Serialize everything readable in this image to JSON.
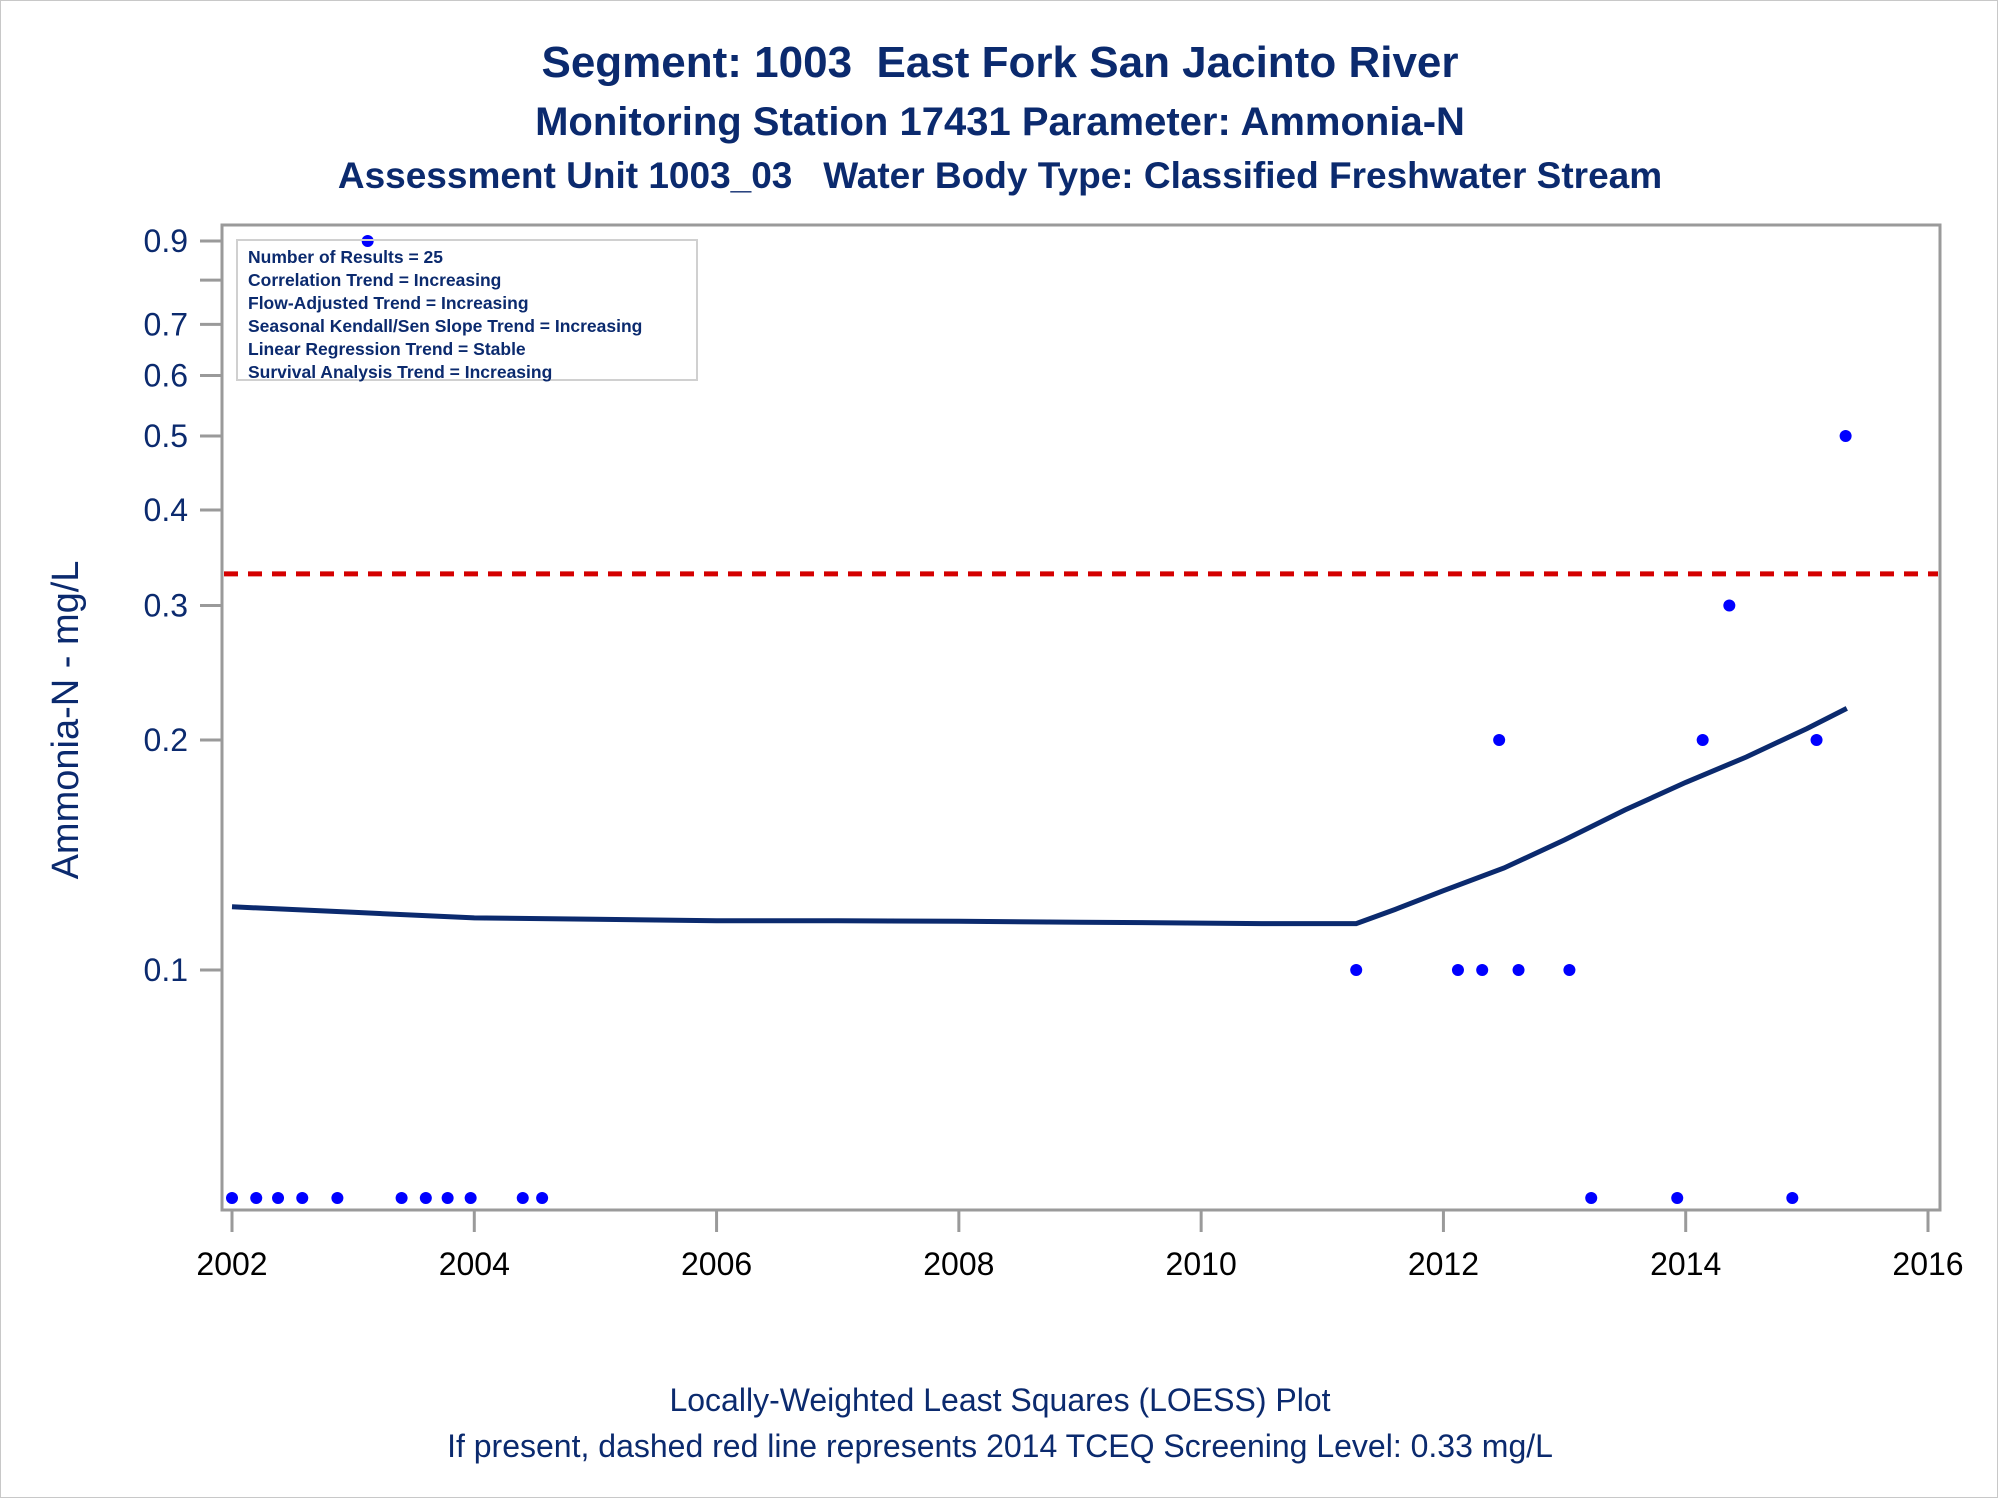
{
  "titles": {
    "line1": "Segment: 1003  East Fork San Jacinto River",
    "line2": "Monitoring Station 17431 Parameter: Ammonia-N",
    "line3": "Assessment Unit 1003_03   Water Body Type: Classified Freshwater Stream"
  },
  "footnotes": {
    "line1": "Locally-Weighted Least Squares (LOESS) Plot",
    "line2": "If present, dashed red line represents 2014 TCEQ Screening Level: 0.33 mg/L"
  },
  "legend": [
    "Number of Results = 25",
    "Correlation Trend = Increasing",
    "Flow-Adjusted Trend = Increasing",
    "Seasonal Kendall/Sen Slope Trend = Increasing",
    "Linear Regression Trend = Stable",
    "Survival Analysis Trend = Increasing"
  ],
  "colors": {
    "text": "#0b2a6e",
    "points": "#0000ff",
    "loess_line": "#0b2a6e",
    "screening_line": "#d40000",
    "axis": "#9a9a9a"
  },
  "chart_data": {
    "type": "scatter",
    "title": "Segment: 1003  East Fork San Jacinto River",
    "ylabel": "Ammonia-N - mg/L",
    "xlabel": "",
    "y_scale": "log",
    "ylim": [
      0.05,
      0.95
    ],
    "xlim": [
      2002,
      2016
    ],
    "x_ticks": [
      "2002",
      "2004",
      "2006",
      "2008",
      "2010",
      "2012",
      "2014",
      "2016"
    ],
    "y_ticks": [
      {
        "value": 0.1,
        "label": "0.1"
      },
      {
        "value": 0.2,
        "label": "0.2"
      },
      {
        "value": 0.3,
        "label": "0.3"
      },
      {
        "value": 0.4,
        "label": "0.4"
      },
      {
        "value": 0.5,
        "label": "0.5"
      },
      {
        "value": 0.6,
        "label": "0.6"
      },
      {
        "value": 0.7,
        "label": "0.7"
      },
      {
        "value": 0.8,
        "label": ""
      },
      {
        "value": 0.9,
        "label": "0.9"
      }
    ],
    "screening_level": 0.33,
    "points": [
      {
        "x": 2002.0,
        "y": 0.05
      },
      {
        "x": 2002.2,
        "y": 0.05
      },
      {
        "x": 2002.38,
        "y": 0.05
      },
      {
        "x": 2002.58,
        "y": 0.05
      },
      {
        "x": 2002.87,
        "y": 0.05
      },
      {
        "x": 2003.12,
        "y": 0.9
      },
      {
        "x": 2003.4,
        "y": 0.05
      },
      {
        "x": 2003.6,
        "y": 0.05
      },
      {
        "x": 2003.78,
        "y": 0.05
      },
      {
        "x": 2003.97,
        "y": 0.05
      },
      {
        "x": 2004.4,
        "y": 0.05
      },
      {
        "x": 2004.56,
        "y": 0.05
      },
      {
        "x": 2011.28,
        "y": 0.1
      },
      {
        "x": 2012.12,
        "y": 0.1
      },
      {
        "x": 2012.32,
        "y": 0.1
      },
      {
        "x": 2012.46,
        "y": 0.2
      },
      {
        "x": 2012.62,
        "y": 0.1
      },
      {
        "x": 2013.04,
        "y": 0.1
      },
      {
        "x": 2013.22,
        "y": 0.05
      },
      {
        "x": 2013.93,
        "y": 0.05
      },
      {
        "x": 2014.14,
        "y": 0.2
      },
      {
        "x": 2014.36,
        "y": 0.3
      },
      {
        "x": 2014.88,
        "y": 0.05
      },
      {
        "x": 2015.08,
        "y": 0.2
      },
      {
        "x": 2015.32,
        "y": 0.5
      }
    ],
    "loess": [
      {
        "x": 2002.0,
        "y": 0.121
      },
      {
        "x": 2003.0,
        "y": 0.119
      },
      {
        "x": 2004.0,
        "y": 0.117
      },
      {
        "x": 2005.0,
        "y": 0.1165
      },
      {
        "x": 2006.0,
        "y": 0.116
      },
      {
        "x": 2007.0,
        "y": 0.116
      },
      {
        "x": 2008.0,
        "y": 0.1158
      },
      {
        "x": 2009.0,
        "y": 0.1155
      },
      {
        "x": 2010.0,
        "y": 0.1152
      },
      {
        "x": 2010.5,
        "y": 0.115
      },
      {
        "x": 2011.28,
        "y": 0.115
      },
      {
        "x": 2011.6,
        "y": 0.12
      },
      {
        "x": 2012.0,
        "y": 0.127
      },
      {
        "x": 2012.5,
        "y": 0.136
      },
      {
        "x": 2013.0,
        "y": 0.148
      },
      {
        "x": 2013.5,
        "y": 0.162
      },
      {
        "x": 2014.0,
        "y": 0.176
      },
      {
        "x": 2014.5,
        "y": 0.19
      },
      {
        "x": 2015.0,
        "y": 0.207
      },
      {
        "x": 2015.33,
        "y": 0.22
      }
    ]
  }
}
